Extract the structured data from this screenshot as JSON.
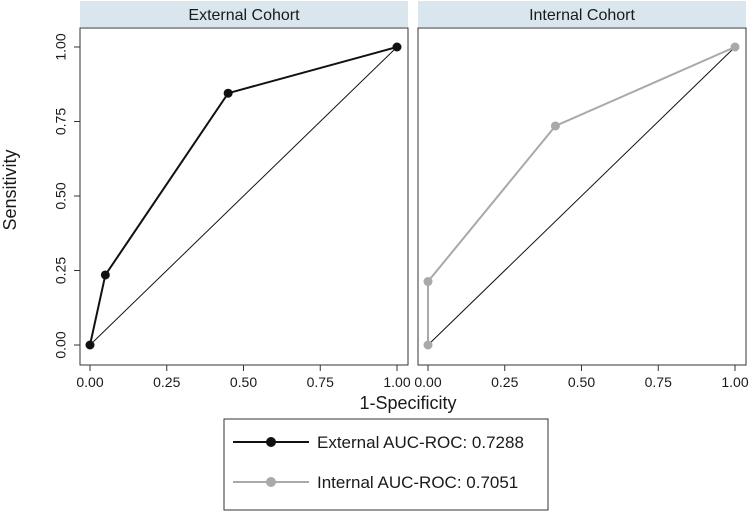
{
  "chart_data": {
    "type": "line",
    "ylabel": "Sensitivity",
    "xlabel": "1-Specificity",
    "xlim": [
      0,
      1
    ],
    "ylim": [
      0,
      1
    ],
    "xticks": [
      "0.00",
      "0.25",
      "0.50",
      "0.75",
      "1.00"
    ],
    "yticks": [
      "0.00",
      "0.25",
      "0.50",
      "0.75",
      "1.00"
    ],
    "legend_position": "bottom",
    "panels": [
      {
        "title": "External Cohort",
        "series": [
          {
            "name": "External AUC-ROC: 0.7288",
            "color": "#111111",
            "x": [
              0.0,
              0.05,
              0.45,
              1.0
            ],
            "y": [
              0.0,
              0.235,
              0.845,
              1.0
            ]
          }
        ],
        "reference_line": {
          "x": [
            0,
            1
          ],
          "y": [
            0,
            1
          ]
        }
      },
      {
        "title": "Internal Cohort",
        "series": [
          {
            "name": "Internal AUC-ROC: 0.7051",
            "color": "#a9a9a9",
            "x": [
              0.0,
              0.0,
              0.415,
              1.0
            ],
            "y": [
              0.0,
              0.213,
              0.735,
              1.0
            ]
          }
        ],
        "reference_line": {
          "x": [
            0,
            1
          ],
          "y": [
            0,
            1
          ]
        }
      }
    ],
    "legend": [
      {
        "label": "External AUC-ROC: 0.7288",
        "color": "#111111"
      },
      {
        "label": "Internal AUC-ROC: 0.7051",
        "color": "#a9a9a9"
      }
    ],
    "colors": {
      "strip": "#d9e6ee",
      "axis": "#333333",
      "reference": "#111111"
    }
  }
}
